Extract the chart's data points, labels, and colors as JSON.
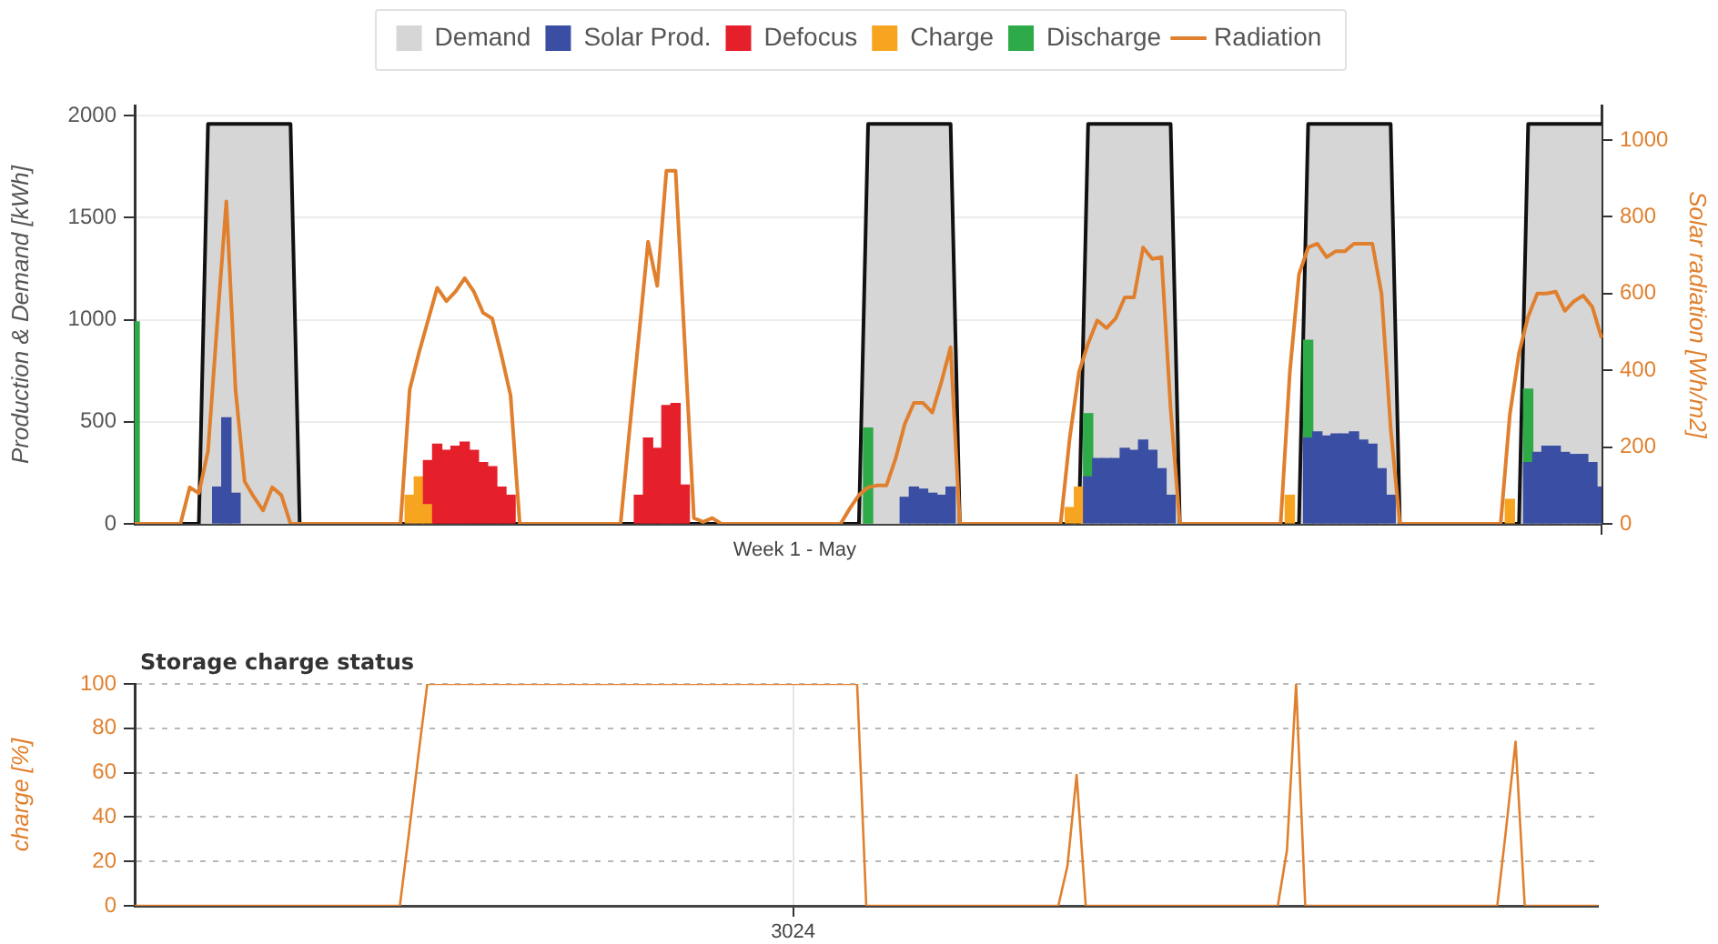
{
  "chart_data": [
    {
      "type": "bar",
      "legend": "top",
      "grid": "y",
      "marker": "none",
      "ylabel": "Production & Demand [kWh]",
      "y2label": "Solar radiation [Wh/m2]",
      "categories": [
        null,
        null,
        null,
        null,
        null,
        null,
        null,
        null,
        null,
        null,
        null,
        null,
        null,
        null,
        null,
        null,
        null,
        null,
        null,
        null,
        null,
        null,
        null,
        null,
        null,
        null,
        null,
        null,
        null,
        null,
        null,
        null,
        null,
        null,
        null,
        null,
        null,
        null,
        null,
        null,
        null,
        null,
        null,
        null,
        null,
        null,
        null,
        null,
        null,
        null,
        null,
        null,
        null,
        null,
        null,
        null,
        null,
        null,
        null,
        null,
        null,
        null,
        null,
        null,
        null,
        null,
        null,
        null,
        null,
        null,
        null,
        null,
        "Week 1 - May",
        null,
        null,
        null,
        null,
        null,
        null,
        null,
        null,
        null,
        null,
        null,
        null,
        null,
        null,
        null,
        null,
        null,
        null,
        null,
        null,
        null,
        null,
        null,
        null,
        null,
        null,
        null,
        null,
        null,
        null,
        null,
        null,
        null,
        null,
        null,
        null,
        null,
        null,
        null,
        null,
        null,
        null,
        null,
        null,
        null,
        null,
        null,
        null,
        null,
        null,
        null,
        null,
        null,
        null,
        null,
        null,
        null,
        null,
        null,
        null,
        null,
        null,
        null,
        null,
        null,
        null,
        null,
        null,
        null,
        null,
        null,
        null,
        null,
        null,
        null,
        null,
        null,
        null,
        null,
        null,
        null,
        null,
        null,
        null,
        null,
        null,
        null,
        null
      ],
      "ylim": [
        0,
        2050
      ],
      "yticks": [
        0,
        500,
        1000,
        1500,
        2000
      ],
      "y2lim": [
        0,
        1090
      ],
      "y2ticks": [
        0,
        200,
        400,
        600,
        800,
        1000
      ],
      "series": [
        {
          "name": "Demand",
          "type": "area",
          "color": "#d6d6d6",
          "values": [
            0,
            0,
            0,
            0,
            0,
            0,
            0,
            0,
            1960,
            1960,
            1960,
            1960,
            1960,
            1960,
            1960,
            1960,
            1960,
            1960,
            0,
            0,
            0,
            0,
            0,
            0,
            0,
            0,
            0,
            0,
            0,
            0,
            0,
            0,
            0,
            0,
            0,
            0,
            0,
            0,
            0,
            0,
            0,
            0,
            0,
            0,
            0,
            0,
            0,
            0,
            0,
            0,
            0,
            0,
            0,
            0,
            0,
            0,
            0,
            0,
            0,
            0,
            0,
            0,
            0,
            0,
            0,
            0,
            0,
            0,
            0,
            0,
            0,
            0,
            0,
            0,
            0,
            0,
            0,
            0,
            0,
            0,
            1960,
            1960,
            1960,
            1960,
            1960,
            1960,
            1960,
            1960,
            1960,
            1960,
            0,
            0,
            0,
            0,
            0,
            0,
            0,
            0,
            0,
            0,
            0,
            0,
            0,
            0,
            1960,
            1960,
            1960,
            1960,
            1960,
            1960,
            1960,
            1960,
            1960,
            1960,
            0,
            0,
            0,
            0,
            0,
            0,
            0,
            0,
            0,
            0,
            0,
            0,
            0,
            0,
            1960,
            1960,
            1960,
            1960,
            1960,
            1960,
            1960,
            1960,
            1960,
            1960,
            0,
            0,
            0,
            0,
            0,
            0,
            0,
            0,
            0,
            0,
            0,
            0,
            0,
            0,
            1960,
            1960,
            1960,
            1960,
            1960,
            1960,
            1960,
            1960,
            1960
          ]
        },
        {
          "name": "Solar Prod.",
          "color": "#3a4fa3",
          "values": [
            null,
            null,
            null,
            null,
            null,
            null,
            null,
            null,
            null,
            180,
            520,
            150,
            null,
            null,
            null,
            null,
            null,
            null,
            null,
            null,
            null,
            null,
            null,
            null,
            null,
            null,
            null,
            null,
            null,
            null,
            null,
            null,
            null,
            null,
            null,
            null,
            null,
            null,
            null,
            null,
            null,
            null,
            null,
            null,
            null,
            null,
            null,
            null,
            null,
            null,
            null,
            null,
            null,
            null,
            null,
            null,
            null,
            null,
            null,
            null,
            null,
            null,
            null,
            null,
            null,
            null,
            null,
            null,
            null,
            null,
            null,
            null,
            null,
            null,
            null,
            null,
            null,
            null,
            null,
            null,
            null,
            null,
            null,
            null,
            130,
            180,
            170,
            150,
            140,
            180,
            null,
            null,
            null,
            null,
            null,
            null,
            null,
            null,
            null,
            null,
            null,
            null,
            null,
            null,
            230,
            320,
            320,
            320,
            370,
            360,
            410,
            360,
            270,
            140,
            null,
            null,
            null,
            null,
            null,
            null,
            null,
            null,
            null,
            null,
            null,
            null,
            null,
            null,
            420,
            450,
            430,
            440,
            440,
            450,
            410,
            390,
            270,
            140,
            null,
            null,
            null,
            null,
            null,
            null,
            null,
            null,
            null,
            null,
            null,
            null,
            null,
            null,
            300,
            350,
            380,
            380,
            350,
            340,
            340,
            300,
            180
          ]
        },
        {
          "name": "Defocus",
          "color": "#e5202a",
          "values": [
            null,
            null,
            null,
            null,
            null,
            null,
            null,
            null,
            null,
            null,
            null,
            null,
            null,
            null,
            null,
            null,
            null,
            null,
            null,
            null,
            null,
            null,
            null,
            null,
            null,
            null,
            null,
            null,
            null,
            null,
            null,
            null,
            210,
            390,
            360,
            380,
            400,
            360,
            300,
            280,
            180,
            140,
            null,
            null,
            null,
            null,
            null,
            null,
            null,
            null,
            null,
            null,
            null,
            null,
            null,
            140,
            420,
            370,
            580,
            590,
            190,
            null,
            null,
            null,
            null,
            null,
            null,
            null,
            null,
            null,
            null,
            null,
            null,
            null,
            null,
            null,
            null,
            null,
            null,
            null,
            null,
            null,
            null,
            null,
            null,
            null,
            null,
            null,
            null,
            null,
            null,
            null,
            null,
            null,
            null,
            null,
            null,
            null,
            null,
            null,
            null,
            null,
            null,
            null,
            null,
            null,
            null,
            null,
            null,
            null,
            null,
            null,
            null,
            null,
            null,
            null,
            null,
            null,
            null,
            null,
            null,
            null,
            null,
            null,
            null,
            null,
            null,
            null,
            null,
            null,
            null,
            null,
            null,
            null,
            null,
            null,
            null,
            null,
            null,
            null,
            null,
            null,
            null,
            null,
            null,
            null,
            null,
            null,
            null,
            null,
            null,
            null,
            null,
            null,
            null,
            null,
            null,
            null,
            null,
            null,
            null
          ],
          "base": [
            null,
            null,
            null,
            null,
            null,
            null,
            null,
            null,
            null,
            null,
            null,
            null,
            null,
            null,
            null,
            null,
            null,
            null,
            null,
            null,
            null,
            null,
            null,
            null,
            null,
            null,
            null,
            null,
            null,
            null,
            null,
            null,
            100,
            0,
            0,
            0,
            0,
            0,
            0,
            0,
            0,
            0,
            null,
            null,
            null,
            null,
            null,
            null,
            null,
            null,
            null,
            null,
            null,
            null,
            null,
            0,
            0,
            0,
            0,
            0,
            0,
            null,
            null,
            null,
            null,
            null,
            null,
            null,
            null,
            null,
            null,
            null,
            null,
            null,
            null,
            null,
            null,
            null,
            null,
            null,
            null,
            null,
            null,
            null,
            null,
            null,
            null,
            null,
            null,
            null,
            null,
            null,
            null,
            null,
            null,
            null,
            null,
            null,
            null,
            null,
            null,
            null,
            null,
            null,
            null,
            null,
            null,
            null,
            null,
            null,
            null,
            null,
            null,
            null,
            null,
            null,
            null,
            null,
            null,
            null,
            null,
            null,
            null,
            null,
            null,
            null,
            null,
            null,
            null,
            null,
            null,
            null,
            null,
            null,
            null,
            null,
            null,
            null,
            null,
            null,
            null,
            null,
            null,
            null,
            null,
            null,
            null,
            null,
            null,
            null,
            null,
            null,
            null,
            null,
            null,
            null,
            null,
            null,
            null,
            null,
            null
          ]
        },
        {
          "name": "Charge",
          "color": "#f7a520",
          "values": [
            null,
            null,
            null,
            null,
            null,
            null,
            null,
            null,
            null,
            null,
            null,
            null,
            null,
            null,
            null,
            null,
            null,
            null,
            null,
            null,
            null,
            null,
            null,
            null,
            null,
            null,
            null,
            null,
            null,
            null,
            140,
            230,
            100,
            null,
            null,
            null,
            null,
            null,
            null,
            null,
            null,
            null,
            null,
            null,
            null,
            null,
            null,
            null,
            null,
            null,
            null,
            null,
            null,
            null,
            null,
            null,
            null,
            null,
            null,
            null,
            null,
            null,
            null,
            null,
            null,
            null,
            null,
            null,
            null,
            null,
            null,
            null,
            null,
            null,
            null,
            null,
            null,
            null,
            null,
            null,
            null,
            null,
            null,
            null,
            null,
            null,
            null,
            null,
            null,
            null,
            null,
            null,
            null,
            null,
            null,
            null,
            null,
            null,
            null,
            null,
            null,
            null,
            80,
            180,
            null,
            null,
            null,
            null,
            null,
            null,
            null,
            null,
            null,
            null,
            null,
            null,
            null,
            null,
            null,
            null,
            null,
            null,
            null,
            null,
            null,
            null,
            140,
            null,
            null,
            null,
            null,
            null,
            null,
            null,
            null,
            null,
            null,
            null,
            null,
            null,
            null,
            null,
            null,
            null,
            null,
            null,
            null,
            null,
            null,
            null,
            120,
            null,
            null,
            null,
            null,
            null,
            null,
            null,
            null,
            null,
            null
          ]
        },
        {
          "name": "Discharge",
          "color": "#2eaa48",
          "values": [
            990,
            null,
            null,
            null,
            null,
            null,
            null,
            null,
            null,
            null,
            null,
            null,
            null,
            null,
            null,
            null,
            null,
            null,
            null,
            null,
            null,
            null,
            null,
            null,
            null,
            null,
            null,
            null,
            null,
            null,
            null,
            null,
            null,
            null,
            null,
            null,
            null,
            null,
            null,
            null,
            null,
            null,
            null,
            null,
            null,
            null,
            null,
            null,
            null,
            null,
            null,
            null,
            null,
            null,
            null,
            null,
            null,
            null,
            null,
            null,
            null,
            null,
            null,
            null,
            null,
            null,
            null,
            null,
            null,
            null,
            null,
            null,
            null,
            null,
            null,
            null,
            null,
            null,
            null,
            null,
            470,
            null,
            null,
            null,
            null,
            null,
            null,
            null,
            null,
            null,
            null,
            null,
            null,
            null,
            null,
            null,
            null,
            null,
            null,
            null,
            null,
            null,
            null,
            null,
            310,
            null,
            null,
            null,
            null,
            null,
            null,
            null,
            null,
            null,
            null,
            null,
            null,
            null,
            null,
            null,
            null,
            null,
            null,
            null,
            null,
            null,
            null,
            null,
            480,
            null,
            null,
            null,
            null,
            null,
            null,
            null,
            null,
            null,
            null,
            null,
            null,
            null,
            null,
            null,
            null,
            null,
            null,
            null,
            null,
            null,
            null,
            null,
            360,
            null,
            null,
            null,
            null,
            null,
            null,
            null,
            null
          ],
          "base": [
            0,
            null,
            null,
            null,
            null,
            null,
            null,
            null,
            null,
            null,
            null,
            null,
            null,
            null,
            null,
            null,
            null,
            null,
            null,
            null,
            null,
            null,
            null,
            null,
            null,
            null,
            null,
            null,
            null,
            null,
            null,
            null,
            null,
            null,
            null,
            null,
            null,
            null,
            null,
            null,
            null,
            null,
            null,
            null,
            null,
            null,
            null,
            null,
            null,
            null,
            null,
            null,
            null,
            null,
            null,
            null,
            null,
            null,
            null,
            null,
            null,
            null,
            null,
            null,
            null,
            null,
            null,
            null,
            null,
            null,
            null,
            null,
            null,
            null,
            null,
            null,
            null,
            null,
            null,
            null,
            0,
            null,
            null,
            null,
            null,
            null,
            null,
            null,
            null,
            null,
            null,
            null,
            null,
            null,
            null,
            null,
            null,
            null,
            null,
            null,
            null,
            null,
            null,
            null,
            230,
            null,
            null,
            null,
            null,
            null,
            null,
            null,
            null,
            null,
            null,
            null,
            null,
            null,
            null,
            null,
            null,
            null,
            null,
            null,
            null,
            null,
            null,
            null,
            420,
            null,
            null,
            null,
            null,
            null,
            null,
            null,
            null,
            null,
            null,
            null,
            null,
            null,
            null,
            null,
            null,
            null,
            null,
            null,
            null,
            null,
            null,
            null,
            300,
            null,
            null,
            null,
            null,
            null,
            null,
            null,
            null
          ]
        },
        {
          "name": "Radiation",
          "type": "line",
          "axis": "y2",
          "color": "#e0802e",
          "values": [
            0,
            0,
            0,
            0,
            0,
            0,
            95,
            80,
            190,
            520,
            840,
            350,
            110,
            70,
            35,
            95,
            75,
            0,
            0,
            0,
            0,
            0,
            0,
            0,
            0,
            0,
            0,
            0,
            0,
            0,
            350,
            445,
            530,
            615,
            580,
            605,
            640,
            605,
            550,
            535,
            440,
            335,
            0,
            0,
            0,
            0,
            0,
            0,
            0,
            0,
            0,
            0,
            0,
            0,
            250,
            490,
            735,
            620,
            920,
            920,
            470,
            15,
            5,
            15,
            0,
            0,
            0,
            0,
            0,
            0,
            0,
            0,
            0,
            0,
            0,
            0,
            0,
            0,
            40,
            75,
            95,
            100,
            100,
            170,
            260,
            315,
            315,
            290,
            370,
            460,
            0,
            0,
            0,
            0,
            0,
            0,
            0,
            0,
            0,
            0,
            0,
            0,
            225,
            395,
            470,
            530,
            510,
            535,
            590,
            590,
            720,
            690,
            695,
            300,
            0,
            0,
            0,
            0,
            0,
            0,
            0,
            0,
            0,
            0,
            0,
            0,
            395,
            650,
            720,
            730,
            695,
            710,
            710,
            730,
            730,
            730,
            600,
            250,
            0,
            0,
            0,
            0,
            0,
            0,
            0,
            0,
            0,
            0,
            0,
            0,
            285,
            445,
            540,
            600,
            600,
            605,
            555,
            580,
            595,
            565,
            485
          ]
        }
      ]
    },
    {
      "type": "line",
      "title": "Storage charge status",
      "ylabel": "charge [%]",
      "grid": true,
      "marker": "none",
      "color": "#e0802e",
      "categories": [
        null,
        null,
        null,
        null,
        null,
        null,
        null,
        null,
        null,
        null,
        null,
        null,
        null,
        null,
        null,
        null,
        null,
        null,
        null,
        null,
        null,
        null,
        null,
        null,
        null,
        null,
        null,
        null,
        null,
        null,
        null,
        null,
        null,
        null,
        null,
        null,
        null,
        null,
        null,
        null,
        null,
        null,
        null,
        null,
        null,
        null,
        null,
        null,
        null,
        null,
        null,
        null,
        null,
        null,
        null,
        null,
        null,
        null,
        null,
        null,
        null,
        null,
        null,
        null,
        null,
        null,
        null,
        null,
        null,
        null,
        null,
        null,
        "3024",
        null,
        null,
        null,
        null,
        null,
        null,
        null,
        null,
        null,
        null,
        null,
        null,
        null,
        null,
        null,
        null,
        null,
        null,
        null,
        null,
        null,
        null,
        null,
        null,
        null,
        null,
        null,
        null,
        null,
        null,
        null,
        null,
        null,
        null,
        null,
        null,
        null,
        null,
        null,
        null,
        null,
        null,
        null,
        null,
        null,
        null,
        null,
        null,
        null,
        null,
        null,
        null,
        null,
        null,
        null,
        null,
        null,
        null,
        null,
        null,
        null,
        null,
        null,
        null,
        null,
        null,
        null,
        null,
        null,
        null,
        null,
        null,
        null,
        null,
        null,
        null,
        null,
        null,
        null,
        null,
        null,
        null,
        null,
        null,
        null,
        null,
        null,
        null
      ],
      "ylim": [
        0,
        100
      ],
      "yticks": [
        0,
        20,
        40,
        60,
        80,
        100
      ],
      "values": [
        0,
        0,
        0,
        0,
        0,
        0,
        0,
        0,
        0,
        0,
        0,
        0,
        0,
        0,
        0,
        0,
        0,
        0,
        0,
        0,
        0,
        0,
        0,
        0,
        0,
        0,
        0,
        0,
        0,
        0,
        33,
        67,
        100,
        100,
        100,
        100,
        100,
        100,
        100,
        100,
        100,
        100,
        100,
        100,
        100,
        100,
        100,
        100,
        100,
        100,
        100,
        100,
        100,
        100,
        100,
        100,
        100,
        100,
        100,
        100,
        100,
        100,
        100,
        100,
        100,
        100,
        100,
        100,
        100,
        100,
        100,
        100,
        100,
        100,
        100,
        100,
        100,
        100,
        100,
        100,
        0,
        0,
        0,
        0,
        0,
        0,
        0,
        0,
        0,
        0,
        0,
        0,
        0,
        0,
        0,
        0,
        0,
        0,
        0,
        0,
        0,
        0,
        18,
        59,
        0,
        0,
        0,
        0,
        0,
        0,
        0,
        0,
        0,
        0,
        0,
        0,
        0,
        0,
        0,
        0,
        0,
        0,
        0,
        0,
        0,
        0,
        25,
        100,
        0,
        0,
        0,
        0,
        0,
        0,
        0,
        0,
        0,
        0,
        0,
        0,
        0,
        0,
        0,
        0,
        0,
        0,
        0,
        0,
        0,
        0,
        36,
        74,
        0,
        0,
        0,
        0,
        0,
        0,
        0,
        0,
        0
      ]
    }
  ]
}
